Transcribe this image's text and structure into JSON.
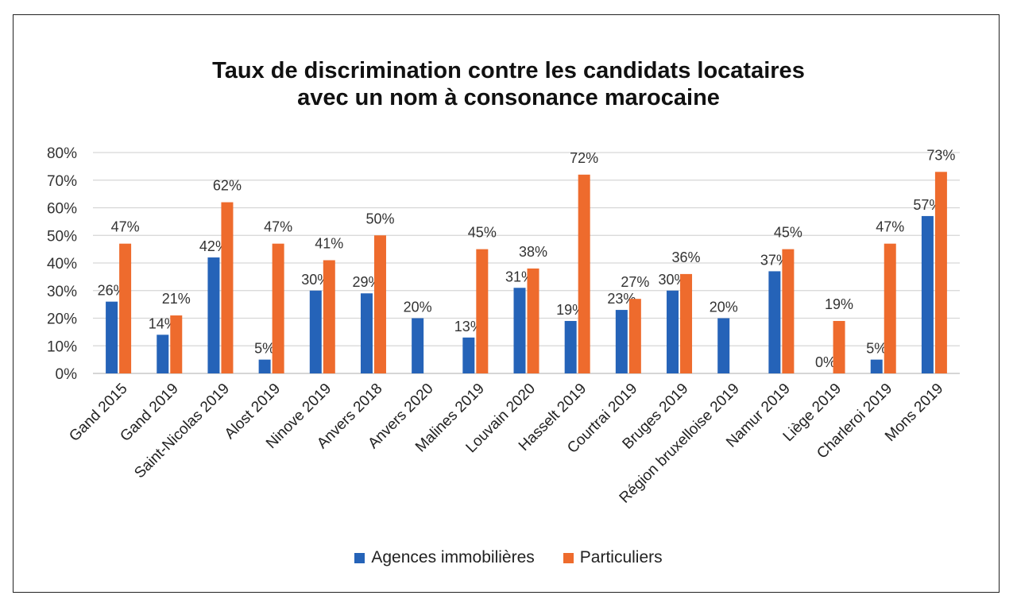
{
  "chart_data": {
    "type": "bar",
    "title": "Taux de discrimination contre les candidats locataires",
    "subtitle": "avec un nom à consonance marocaine",
    "categories": [
      "Gand 2015",
      "Gand 2019",
      "Saint-Nicolas 2019",
      "Alost 2019",
      "Ninove 2019",
      "Anvers 2018",
      "Anvers 2020",
      "Malines 2019",
      "Louvain 2020",
      "Hasselt 2019",
      "Courtrai 2019",
      "Bruges 2019",
      "Région bruxelloise 2019",
      "Namur 2019",
      "Liège 2019",
      "Charleroi 2019",
      "Mons 2019"
    ],
    "series": [
      {
        "name": "Agences immobilières",
        "color": "#2563b8",
        "values": [
          26,
          14,
          42,
          5,
          30,
          29,
          20,
          13,
          31,
          19,
          23,
          30,
          20,
          37,
          0,
          5,
          57
        ],
        "labels": [
          "26%",
          "14%",
          "42%",
          "5%",
          "30%",
          "29%",
          "20%",
          "13%",
          "31%",
          "19%",
          "23%",
          "30%",
          "20%",
          "37%",
          "0%",
          "5%",
          "57%"
        ]
      },
      {
        "name": "Particuliers",
        "color": "#ee6b2d",
        "values": [
          47,
          21,
          62,
          47,
          41,
          50,
          null,
          45,
          38,
          72,
          27,
          36,
          null,
          45,
          19,
          47,
          73
        ],
        "labels": [
          "47%",
          "21%",
          "62%",
          "47%",
          "41%",
          "50%",
          "",
          "45%",
          "38%",
          "72%",
          "27%",
          "36%",
          "",
          "45%",
          "19%",
          "47%",
          "73%"
        ]
      }
    ],
    "ylim": [
      0,
      80
    ],
    "yticks": [
      "0%",
      "10%",
      "20%",
      "30%",
      "40%",
      "50%",
      "60%",
      "70%",
      "80%"
    ],
    "grid": true,
    "legend_position": "bottom"
  }
}
